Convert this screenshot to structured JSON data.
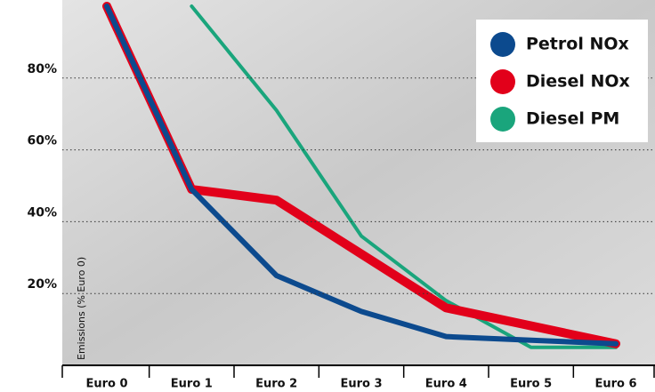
{
  "chart_data": {
    "type": "line",
    "y_label": "Emissions (% Euro 0)",
    "categories": [
      "Euro 0",
      "Euro 1",
      "Euro 2",
      "Euro 3",
      "Euro 4",
      "Euro 5",
      "Euro 6"
    ],
    "series": [
      {
        "name": "Petrol NOx",
        "color": "#0c4a8e",
        "values": [
          100,
          49,
          25,
          15,
          8,
          7,
          6
        ]
      },
      {
        "name": "Diesel NOx",
        "color": "#e2001a",
        "values": [
          100,
          49,
          46,
          31,
          16,
          11,
          6
        ]
      },
      {
        "name": "Diesel PM",
        "color": "#1aa57c",
        "values": [
          null,
          100,
          71,
          36,
          18,
          5,
          5
        ]
      }
    ],
    "ylim": [
      0,
      100
    ],
    "yticks": [
      {
        "value": 20,
        "label": "20%"
      },
      {
        "value": 40,
        "label": "40%"
      },
      {
        "value": 60,
        "label": "60%"
      },
      {
        "value": 80,
        "label": "80%"
      }
    ],
    "grid": true,
    "legend": "upper right"
  }
}
